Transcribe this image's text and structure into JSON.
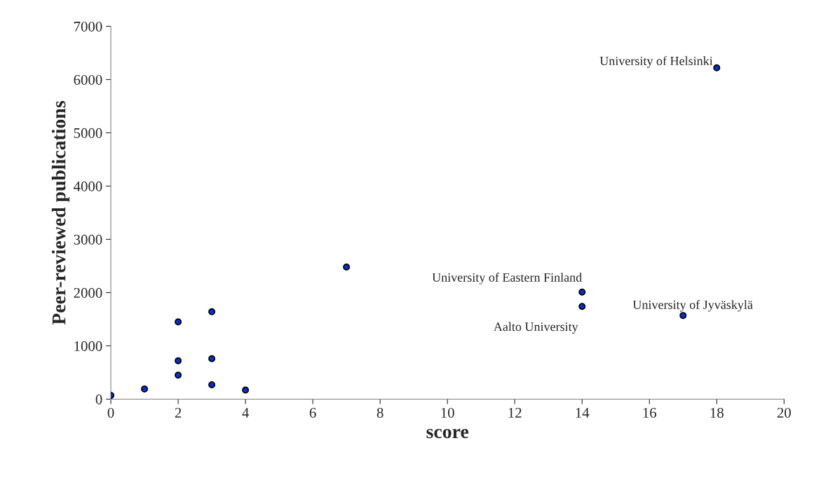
{
  "chart_data": {
    "type": "scatter",
    "xlabel": "score",
    "ylabel": "Peer-reviewed publications",
    "x": [
      0,
      1,
      2,
      2,
      2,
      3,
      3,
      3,
      4,
      7,
      14,
      14,
      17,
      18
    ],
    "values": [
      70,
      190,
      1450,
      720,
      450,
      1640,
      760,
      270,
      170,
      2480,
      2010,
      1740,
      1570,
      6220
    ],
    "color": "#0a2fc8",
    "marker": "circle",
    "xlim": [
      0,
      20
    ],
    "xticks": [
      0,
      2,
      4,
      6,
      8,
      10,
      12,
      14,
      16,
      18,
      20
    ],
    "ylim": [
      0,
      7000
    ],
    "yticks": [
      0,
      1000,
      2000,
      3000,
      4000,
      5000,
      6000,
      7000
    ],
    "grid": false,
    "annotations": [
      {
        "text": "University of Helsinki",
        "x": 18,
        "y": 6220
      },
      {
        "text": "University of Eastern Finland",
        "x": 14,
        "y": 2010
      },
      {
        "text": "Aalto University",
        "x": 14,
        "y": 1740
      },
      {
        "text": "University of Jyväskylä",
        "x": 17,
        "y": 1570
      }
    ]
  }
}
